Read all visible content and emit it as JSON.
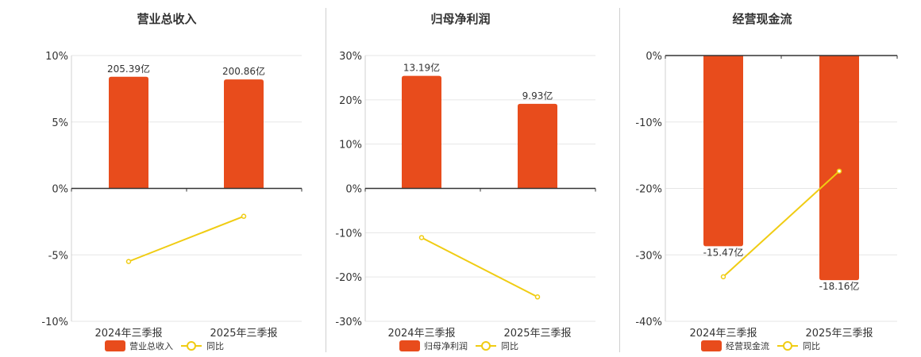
{
  "colors": {
    "bar": "#e84c1c",
    "line": "#f0cc13",
    "axis": "#333333",
    "grid": "#e6e6e6",
    "text": "#333333"
  },
  "chart_data": [
    {
      "type": "bar",
      "title": "营业总收入",
      "categories": [
        "2024年三季报",
        "2025年三季报"
      ],
      "series": [
        {
          "name": "营业总收入",
          "kind": "bar",
          "values": [
            8.4,
            8.2
          ],
          "labels": [
            "205.39亿",
            "200.86亿"
          ]
        },
        {
          "name": "同比",
          "kind": "line",
          "values": [
            -5.5,
            -2.1
          ]
        }
      ],
      "ylim": [
        -10,
        10
      ],
      "yticks": [
        10,
        5,
        0,
        -5,
        -10
      ],
      "ytick_labels": [
        "10%",
        "5%",
        "0%",
        "-5%",
        "-10%"
      ],
      "grid": true,
      "legend": "bottom"
    },
    {
      "type": "bar",
      "title": "归母净利润",
      "categories": [
        "2024年三季报",
        "2025年三季报"
      ],
      "series": [
        {
          "name": "归母净利润",
          "kind": "bar",
          "values": [
            25.4,
            19.1
          ],
          "labels": [
            "13.19亿",
            "9.93亿"
          ]
        },
        {
          "name": "同比",
          "kind": "line",
          "values": [
            -11.1,
            -24.5
          ]
        }
      ],
      "ylim": [
        -30,
        30
      ],
      "yticks": [
        30,
        20,
        10,
        0,
        -10,
        -20,
        -30
      ],
      "ytick_labels": [
        "30%",
        "20%",
        "10%",
        "0%",
        "-10%",
        "-20%",
        "-30%"
      ],
      "grid": true,
      "legend": "bottom"
    },
    {
      "type": "bar",
      "title": "经营现金流",
      "categories": [
        "2024年三季报",
        "2025年三季报"
      ],
      "series": [
        {
          "name": "经营现金流",
          "kind": "bar",
          "values": [
            -28.7,
            -33.8
          ],
          "labels": [
            "-15.47亿",
            "-18.16亿"
          ]
        },
        {
          "name": "同比",
          "kind": "line",
          "values": [
            -33.3,
            -17.4
          ]
        }
      ],
      "ylim": [
        -40,
        0
      ],
      "yticks": [
        0,
        -10,
        -20,
        -30,
        -40
      ],
      "ytick_labels": [
        "0%",
        "-10%",
        "-20%",
        "-30%",
        "-40%"
      ],
      "grid": true,
      "legend": "bottom"
    }
  ]
}
